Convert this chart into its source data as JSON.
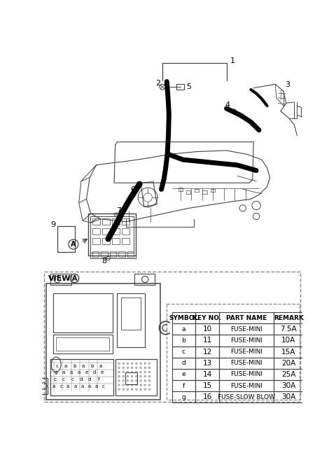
{
  "bg_color": "#ffffff",
  "table": {
    "headers": [
      "SYMBOL",
      "KEY NO.",
      "PART NAME",
      "REMARK"
    ],
    "rows": [
      [
        "a",
        "10",
        "FUSE-MINI",
        "7.5A"
      ],
      [
        "b",
        "11",
        "FUSE-MINI",
        "10A"
      ],
      [
        "c",
        "12",
        "FUSE-MINI",
        "15A"
      ],
      [
        "d",
        "13",
        "FUSE-MINI",
        "20A"
      ],
      [
        "e",
        "14",
        "FUSE-MINI",
        "25A"
      ],
      [
        "f",
        "15",
        "FUSE-MINI",
        "30A"
      ],
      [
        "g",
        "16",
        "FUSE-SLOW BLOW",
        "30A"
      ]
    ]
  },
  "line_color": "#444444",
  "thick_color": "#111111",
  "dashed_color": "#888888",
  "text_color": "#000000"
}
